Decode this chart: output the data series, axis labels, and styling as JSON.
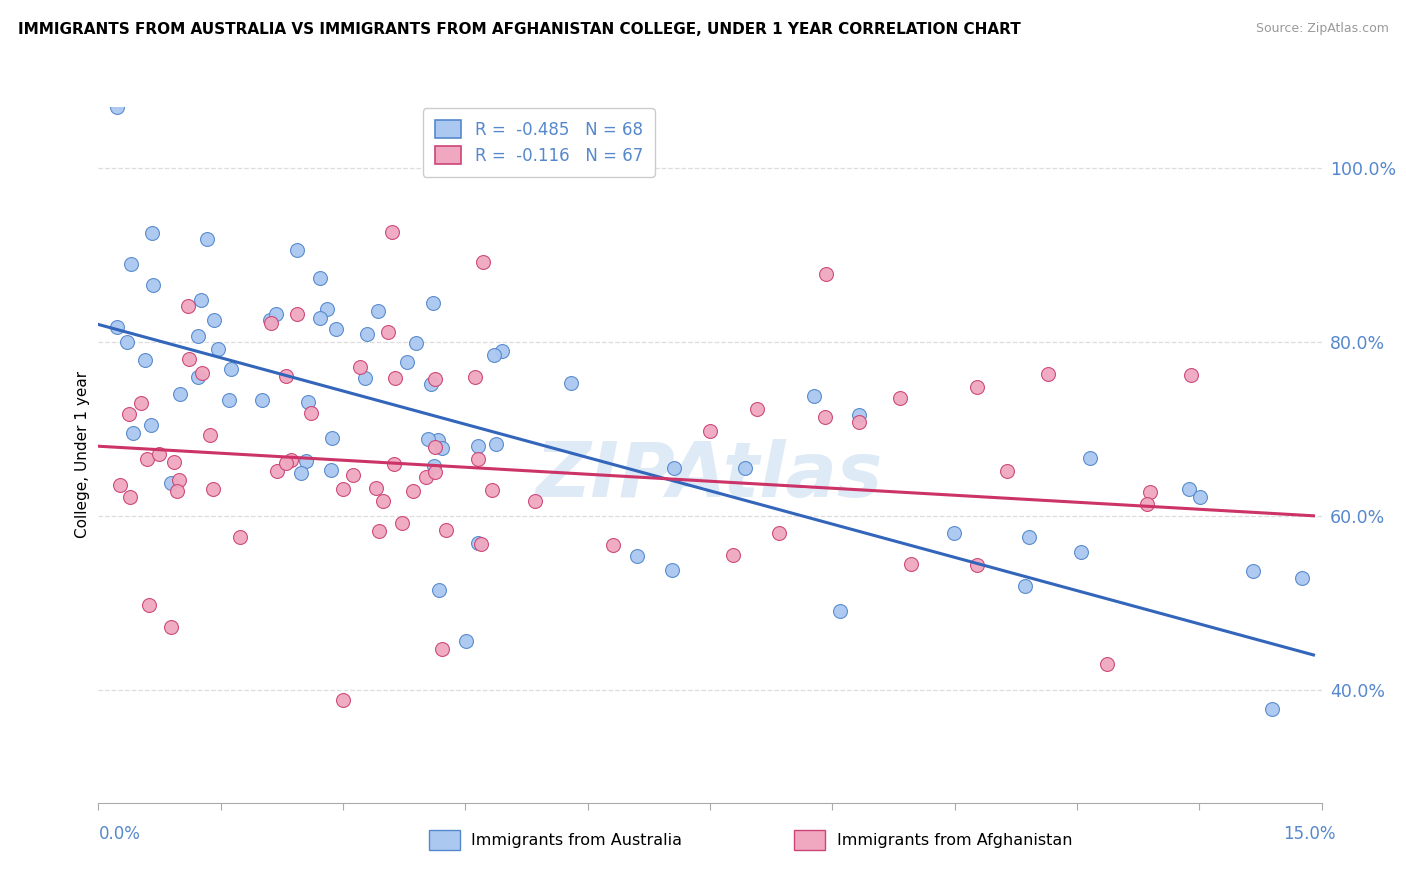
{
  "title": "IMMIGRANTS FROM AUSTRALIA VS IMMIGRANTS FROM AFGHANISTAN COLLEGE, UNDER 1 YEAR CORRELATION CHART",
  "source": "Source: ZipAtlas.com",
  "ylabel": "College, Under 1 year",
  "xmin": 0.0,
  "xmax": 15.0,
  "ymin": 27.0,
  "ymax": 107.0,
  "yticks": [
    40.0,
    60.0,
    80.0,
    100.0
  ],
  "ytick_labels": [
    "40.0%",
    "60.0%",
    "80.0%",
    "100.0%"
  ],
  "australia_color": "#aac8f0",
  "afghanistan_color": "#f0a8c0",
  "australia_edge_color": "#5588cc",
  "afghanistan_edge_color": "#cc4477",
  "australia_line_color": "#3366bb",
  "afghanistan_line_color": "#cc3366",
  "legend_aus_label": "R =  -0.485   N = 68",
  "legend_afg_label": "R =  -0.116   N = 67",
  "aus_line_x0": 0.0,
  "aus_line_x1": 14.9,
  "aus_line_y0": 82.0,
  "aus_line_y1": 44.0,
  "afg_line_x0": 0.0,
  "afg_line_x1": 14.9,
  "afg_line_y0": 68.0,
  "afg_line_y1": 60.0,
  "watermark_text": "ZIPAtlas",
  "watermark_color": "#c8ddf0",
  "label_color": "#5588cc",
  "grid_color": "#dddddd",
  "background": "#ffffff"
}
